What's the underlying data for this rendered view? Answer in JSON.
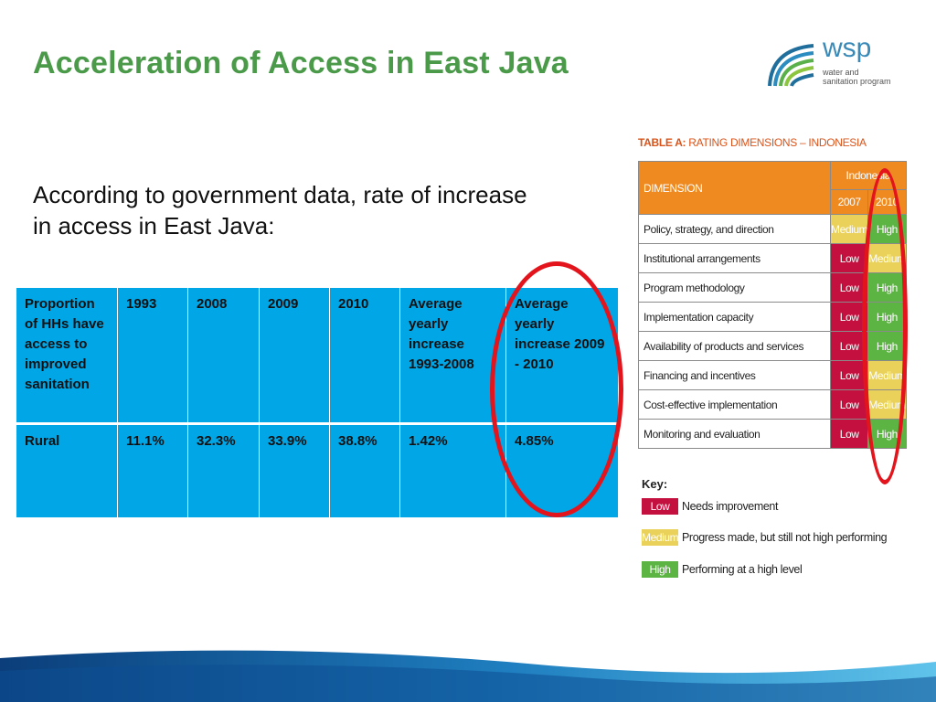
{
  "title": "Acceleration of Access in East Java",
  "logo": {
    "word": "wsp",
    "line1": "water and",
    "line2": "sanitation program"
  },
  "intro": "According to government data,  rate of increase in access in East Java:",
  "main_table": {
    "headers": [
      "Proportion of HHs have access to improved sanitation",
      "1993",
      "2008",
      "2009",
      "2010",
      "Average yearly increase 1993-2008",
      "Average yearly increase 2009 - 2010"
    ],
    "rows": [
      [
        "Rural",
        "11.1%",
        "32.3%",
        "33.9%",
        "38.8%",
        "1.42%",
        "4.85%"
      ]
    ]
  },
  "rating": {
    "title_bold": "TABLE A:",
    "title_rest": " RATING DIMENSIONS – INDONESIA",
    "dimension_header": "DIMENSION",
    "country": "Indonesia",
    "years": [
      "2007",
      "2010"
    ],
    "rows": [
      {
        "dimension": "Policy, strategy, and direction",
        "r2007": "Medium",
        "r2010": "High"
      },
      {
        "dimension": "Institutional arrangements",
        "r2007": "Low",
        "r2010": "Medium"
      },
      {
        "dimension": "Program methodology",
        "r2007": "Low",
        "r2010": "High"
      },
      {
        "dimension": "Implementation capacity",
        "r2007": "Low",
        "r2010": "High"
      },
      {
        "dimension": "Availability of products and services",
        "r2007": "Low",
        "r2010": "High"
      },
      {
        "dimension": "Financing and incentives",
        "r2007": "Low",
        "r2010": "Medium"
      },
      {
        "dimension": "Cost-effective implementation",
        "r2007": "Low",
        "r2010": "Medium"
      },
      {
        "dimension": "Monitoring and evaluation",
        "r2007": "Low",
        "r2010": "High"
      }
    ],
    "key_title": "Key:",
    "key": [
      {
        "swatch": "Low",
        "label": "Needs improvement"
      },
      {
        "swatch": "Medium",
        "label": "Progress made, but still not high performing"
      },
      {
        "swatch": "High",
        "label": "Performing at a high level"
      }
    ]
  },
  "colors": {
    "title_green": "#4a9a4a",
    "table_blue": "#00a6e6",
    "low_red": "#c3103e",
    "medium_yellow": "#e9d15a",
    "high_green": "#5cb443",
    "header_orange": "#ef8a21",
    "circle_red": "#e3141c"
  }
}
